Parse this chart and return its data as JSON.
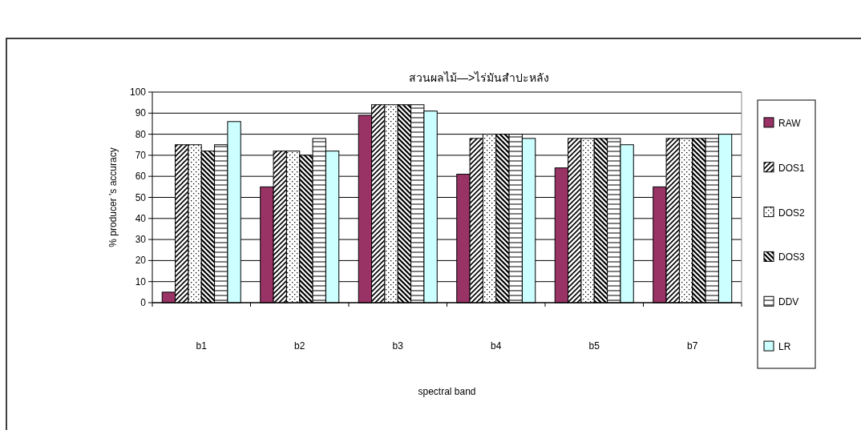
{
  "chart_data": {
    "type": "bar",
    "title": "สวนผลไม้—>ไร่มันสำปะหลัง",
    "xlabel": "spectral band",
    "ylabel": "% producer 's accuracy",
    "categories": [
      "b1",
      "b2",
      "b3",
      "b4",
      "b5",
      "b7"
    ],
    "series": [
      {
        "name": "RAW",
        "color": "#993366",
        "values": [
          5,
          55,
          89,
          61,
          64,
          55
        ]
      },
      {
        "name": "DOS1",
        "color": "#000000",
        "values": [
          75,
          72,
          94,
          78,
          78,
          78
        ]
      },
      {
        "name": "DOS2",
        "color": "#000000",
        "values": [
          75,
          72,
          94,
          80,
          78,
          78
        ]
      },
      {
        "name": "DOS3",
        "color": "#000000",
        "values": [
          72,
          70,
          94,
          80,
          78,
          78
        ]
      },
      {
        "name": "DDV",
        "color": "#000000",
        "values": [
          75,
          78,
          94,
          80,
          78,
          78
        ]
      },
      {
        "name": "LR",
        "color": "#ccffff",
        "values": [
          86,
          72,
          91,
          78,
          75,
          80
        ]
      }
    ],
    "ylim": [
      0,
      100
    ],
    "yticks": [
      0,
      10,
      20,
      30,
      40,
      50,
      60,
      70,
      80,
      90,
      100
    ],
    "grid": "y",
    "legend": "right"
  }
}
